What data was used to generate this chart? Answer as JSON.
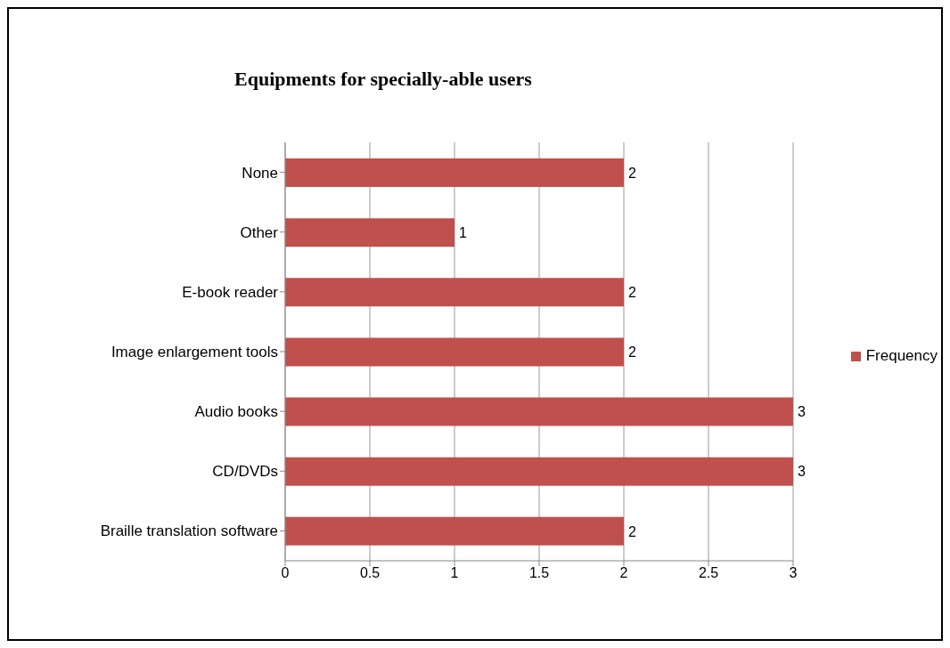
{
  "chart_data": {
    "type": "bar",
    "orientation": "horizontal",
    "title": "Equipments for specially-able users",
    "categories": [
      "None",
      "Other",
      "E-book reader",
      "Image enlargement tools",
      "Audio books",
      "CD/DVDs",
      "Braille translation software"
    ],
    "series": [
      {
        "name": "Frequency",
        "color": "#c0504d",
        "values": [
          2,
          1,
          2,
          2,
          3,
          3,
          2
        ]
      }
    ],
    "xlim": [
      0,
      3
    ],
    "xticks": [
      0,
      0.5,
      1,
      1.5,
      2,
      2.5,
      3
    ],
    "grid": "x",
    "legend": "right",
    "data_labels": true
  }
}
